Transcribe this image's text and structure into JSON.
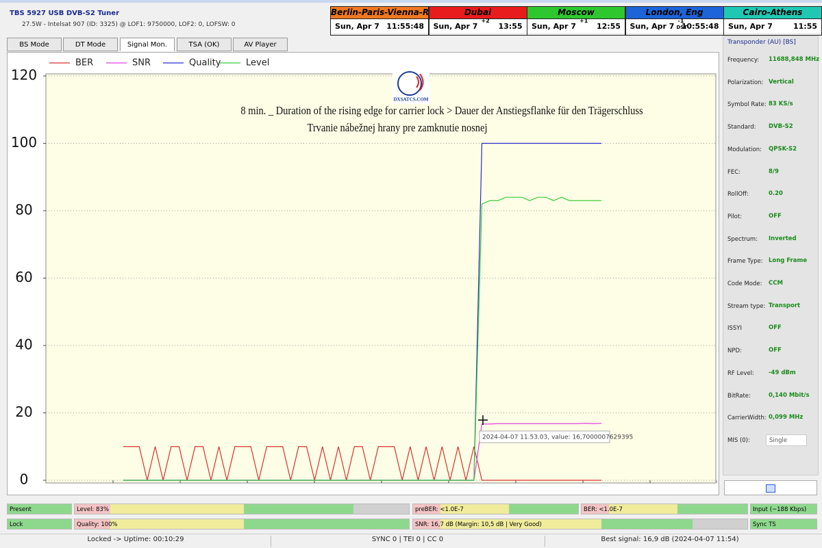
{
  "header": {
    "title": "TBS 5927 USB DVB-S2 Tuner",
    "subtitle": "27.5W - Intelsat 907 (ID: 3325) @ LOF1: 9750000, LOF2: 0, LOFSW: 0"
  },
  "clocks": [
    {
      "city": "Berlin-Paris-Vienna-Roma",
      "color": "#f07820",
      "date": "Sun, Apr 7",
      "time": "11:55:48"
    },
    {
      "city": "Dubai",
      "color": "#e81c1c",
      "date": "Sun, Apr 7",
      "offset": "+2",
      "time": "13:55"
    },
    {
      "city": "Moscow",
      "color": "#2ec82e",
      "date": "Sun, Apr 7",
      "offset": "+1",
      "time": "12:55"
    },
    {
      "city": "London, Eng",
      "color": "#1c64d8",
      "date": "Sun, Apr 7",
      "offset": "-1",
      "dst": "DST",
      "time": "10:55:48"
    },
    {
      "city": "Cairo-Athens",
      "color": "#20c8b4",
      "date": "Sun, Apr 7",
      "time": "11:55"
    }
  ],
  "tabs": [
    "BS Mode",
    "DT Mode",
    "Signal Mon.",
    "TSA (OK)",
    "AV Player"
  ],
  "chart_data": {
    "type": "line",
    "logo": "DXSATCS.COM",
    "annotations": [
      "8 min. _ Duration of the rising edge for carrier lock > Dauer der Anstiegsflanke für den Trägerschluss",
      "Trvanie nábežnej hrany pre zamknutie nosnej"
    ],
    "tooltip": "2024-04-07 11.53.03, value: 16,7000007629395",
    "ylim": [
      0,
      120
    ],
    "yticks": [
      0,
      20,
      40,
      60,
      80,
      100,
      120
    ],
    "grid": true,
    "series": [
      {
        "name": "BER",
        "color": "#d83030",
        "values": [
          10,
          10,
          10,
          0,
          10,
          0,
          10,
          10,
          0,
          10,
          10,
          0,
          10,
          0,
          10,
          10,
          10,
          0,
          10,
          10,
          10,
          0,
          10,
          10,
          0,
          10,
          0,
          10,
          0,
          10,
          10,
          0,
          10,
          10,
          10,
          0,
          10,
          0,
          10,
          0,
          10,
          0,
          10,
          0,
          10,
          0,
          0,
          0,
          0,
          0,
          0,
          0,
          0,
          0,
          0,
          0,
          0,
          0,
          0,
          0,
          0
        ]
      },
      {
        "name": "SNR",
        "color": "#e040e0",
        "values": [
          0,
          0,
          0,
          0,
          0,
          0,
          0,
          0,
          0,
          0,
          0,
          0,
          0,
          0,
          0,
          0,
          0,
          0,
          0,
          0,
          0,
          0,
          0,
          0,
          0,
          0,
          0,
          0,
          0,
          0,
          0,
          0,
          0,
          0,
          0,
          0,
          0,
          0,
          0,
          0,
          0,
          0,
          0,
          0,
          0,
          16.7,
          16.7,
          16.8,
          16.8,
          16.8,
          16.8,
          16.8,
          16.8,
          16.8,
          16.8,
          16.8,
          16.8,
          16.8,
          16.9,
          16.8,
          16.9
        ]
      },
      {
        "name": "Quality",
        "color": "#2a2ad0",
        "values": [
          0,
          0,
          0,
          0,
          0,
          0,
          0,
          0,
          0,
          0,
          0,
          0,
          0,
          0,
          0,
          0,
          0,
          0,
          0,
          0,
          0,
          0,
          0,
          0,
          0,
          0,
          0,
          0,
          0,
          0,
          0,
          0,
          0,
          0,
          0,
          0,
          0,
          0,
          0,
          0,
          0,
          0,
          0,
          0,
          0,
          100,
          100,
          100,
          100,
          100,
          100,
          100,
          100,
          100,
          100,
          100,
          100,
          100,
          100,
          100,
          100
        ]
      },
      {
        "name": "Level",
        "color": "#3ccc3c",
        "values": [
          0,
          0,
          0,
          0,
          0,
          0,
          0,
          0,
          0,
          0,
          0,
          0,
          0,
          0,
          0,
          0,
          0,
          0,
          0,
          0,
          0,
          0,
          0,
          0,
          0,
          0,
          0,
          0,
          0,
          0,
          0,
          0,
          0,
          0,
          0,
          0,
          0,
          0,
          0,
          0,
          0,
          0,
          0,
          0,
          0,
          82,
          83,
          83,
          84,
          84,
          84,
          83,
          84,
          84,
          83,
          84,
          83,
          83,
          83,
          83,
          83
        ]
      }
    ]
  },
  "transponder": {
    "title": "Transponder (AU) [BS]",
    "rows": [
      [
        "Frequency:",
        "11688,848 MHz"
      ],
      [
        "Polarization:",
        "Vertical"
      ],
      [
        "Symbol Rate:",
        "83 KS/s"
      ],
      [
        "Standard:",
        "DVB-S2"
      ],
      [
        "Modulation:",
        "QPSK-S2"
      ],
      [
        "FEC:",
        "8/9"
      ],
      [
        "RollOff:",
        "0.20"
      ],
      [
        "Pilot:",
        "OFF"
      ],
      [
        "Spectrum:",
        "Inverted"
      ],
      [
        "Frame Type:",
        "Long Frame"
      ],
      [
        "Code Mode:",
        "CCM"
      ],
      [
        "Stream type:",
        "Transport"
      ],
      [
        "ISSYI",
        "OFF"
      ],
      [
        "NPD:",
        "OFF"
      ],
      [
        "RF Level:",
        "-49 dBm"
      ],
      [
        "BitRate:",
        "0,140 Mbit/s"
      ],
      [
        "CarrierWidth:",
        "0,099 MHz"
      ],
      [
        "MIS (0):",
        "Single"
      ]
    ]
  },
  "status_bars": [
    [
      "Present",
      "Level: 83%",
      "preBER: <1.0E-7",
      "BER: <1.0E-7",
      "Input (~188 Kbps)"
    ],
    [
      "Lock",
      "Quality: 100%",
      "SNR: 16,7 dB (Margin: 10,5 dB | Very Good)",
      "Sync TS"
    ]
  ],
  "footer": [
    "Locked -> Uptime: 00:10:29",
    "SYNC 0 | TEI 0 | CC 0",
    "Best signal: 16,9 dB (2024-04-07 11:54)"
  ]
}
